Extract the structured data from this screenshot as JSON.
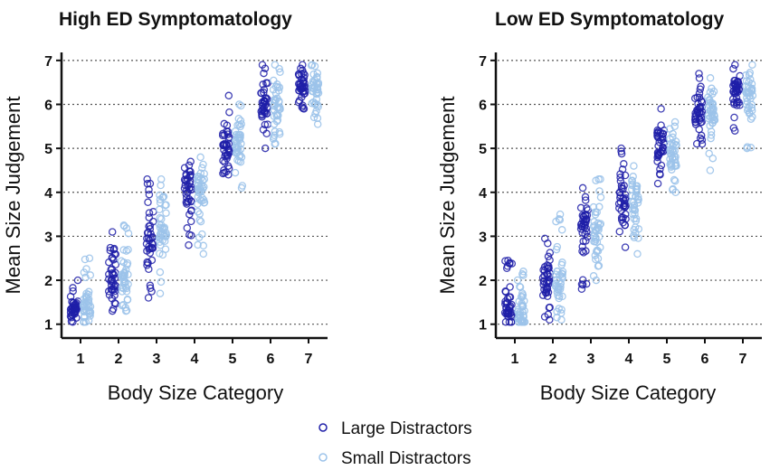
{
  "legend": [
    {
      "name": "Large Distractors",
      "color": "#1f1fa8"
    },
    {
      "name": "Small Distractors",
      "color": "#9cc3ea"
    }
  ],
  "chart_data": [
    {
      "type": "scatter",
      "title": "High ED Symptomatology",
      "xlabel": "Body Size Category",
      "ylabel": "Mean Size Judgement",
      "xlim": [
        0.5,
        7.5
      ],
      "ylim": [
        0.85,
        7.1
      ],
      "x_ticks": [
        1,
        2,
        3,
        4,
        5,
        6,
        7
      ],
      "y_ticks": [
        1,
        2,
        3,
        4,
        5,
        6,
        7
      ],
      "grid": "horizontal dotted",
      "series": [
        {
          "name": "Large Distractors",
          "ranges": [
            [
              1.05,
              2.0,
              1.3
            ],
            [
              1.3,
              3.1,
              2.0
            ],
            [
              1.6,
              4.3,
              3.1
            ],
            [
              2.8,
              4.7,
              4.0
            ],
            [
              4.4,
              6.2,
              5.1
            ],
            [
              5.0,
              6.9,
              5.9
            ],
            [
              5.9,
              6.9,
              6.45
            ]
          ]
        },
        {
          "name": "Small Distractors",
          "ranges": [
            [
              1.05,
              2.5,
              1.35
            ],
            [
              1.3,
              3.25,
              2.0
            ],
            [
              1.7,
              4.3,
              3.2
            ],
            [
              2.6,
              4.8,
              3.95
            ],
            [
              4.1,
              6.0,
              5.1
            ],
            [
              5.1,
              6.9,
              5.85
            ],
            [
              5.55,
              6.9,
              6.3
            ]
          ]
        }
      ]
    },
    {
      "type": "scatter",
      "title": "Low ED Symptomatology",
      "xlabel": "Body Size Category",
      "ylabel": "Mean Size Judgement",
      "xlim": [
        0.5,
        7.5
      ],
      "ylim": [
        0.85,
        7.1
      ],
      "x_ticks": [
        1,
        2,
        3,
        4,
        5,
        6,
        7
      ],
      "y_ticks": [
        1,
        2,
        3,
        4,
        5,
        6,
        7
      ],
      "grid": "horizontal dotted",
      "series": [
        {
          "name": "Large Distractors",
          "ranges": [
            [
              1.05,
              2.45,
              1.3
            ],
            [
              1.1,
              2.95,
              2.0
            ],
            [
              1.8,
              4.1,
              3.2
            ],
            [
              2.75,
              5.0,
              3.9
            ],
            [
              4.2,
              5.9,
              5.0
            ],
            [
              5.1,
              6.7,
              5.8
            ],
            [
              5.4,
              6.9,
              6.3
            ]
          ]
        },
        {
          "name": "Small Distractors",
          "ranges": [
            [
              1.05,
              2.2,
              1.3
            ],
            [
              1.1,
              3.5,
              2.0
            ],
            [
              2.0,
              4.3,
              3.1
            ],
            [
              2.6,
              4.6,
              3.85
            ],
            [
              4.0,
              5.6,
              4.85
            ],
            [
              4.5,
              6.6,
              5.8
            ],
            [
              5.0,
              6.9,
              6.2
            ]
          ]
        }
      ]
    }
  ]
}
